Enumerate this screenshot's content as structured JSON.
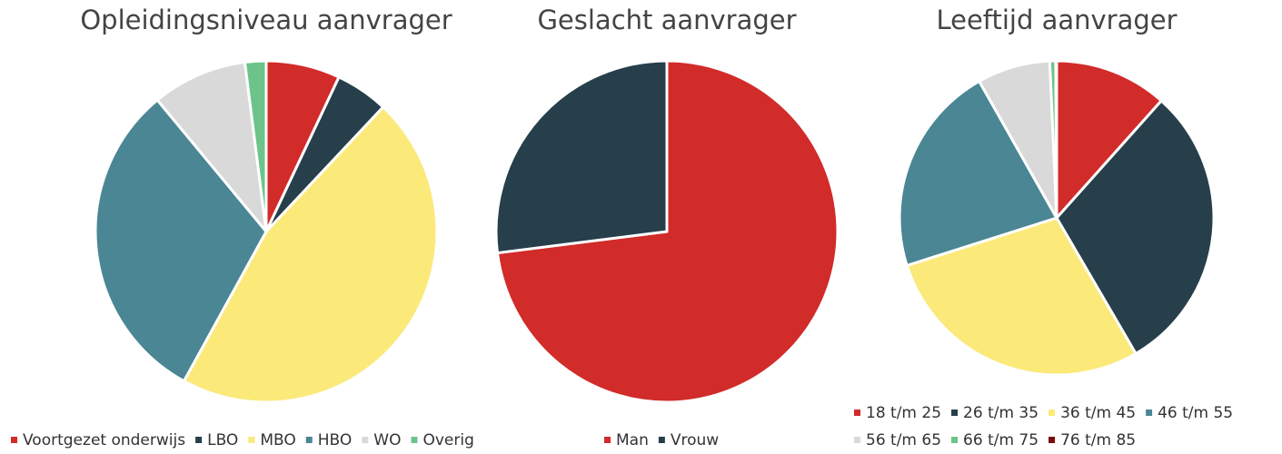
{
  "chart_data": [
    {
      "type": "pie",
      "title": "Opleidingsniveau aanvrager",
      "categories": [
        "Voortgezet onderwijs",
        "LBO",
        "MBO",
        "HBO",
        "WO",
        "Overig"
      ],
      "values": [
        7,
        5,
        46,
        31,
        9,
        2
      ],
      "colors": [
        "#d12b2a",
        "#263f4a",
        "#fbe97a",
        "#4a8694",
        "#d9d9d9",
        "#6cc48a"
      ]
    },
    {
      "type": "pie",
      "title": "Geslacht aanvrager",
      "categories": [
        "Man",
        "Vrouw"
      ],
      "values": [
        73,
        27
      ],
      "colors": [
        "#d12b2a",
        "#263f4a"
      ]
    },
    {
      "type": "pie",
      "title": "Leeftijd aanvrager",
      "categories": [
        "18 t/m 25",
        "26 t/m 35",
        "36 t/m 45",
        "46 t/m 55",
        "56 t/m 65",
        "66 t/m 75",
        "76 t/m 85"
      ],
      "values": [
        11.6,
        30,
        28.5,
        21.7,
        7.5,
        0.6,
        0.1
      ],
      "colors": [
        "#d12b2a",
        "#263f4a",
        "#fbe97a",
        "#4a8694",
        "#d9d9d9",
        "#6cc48a",
        "#7a0c0c"
      ]
    }
  ]
}
